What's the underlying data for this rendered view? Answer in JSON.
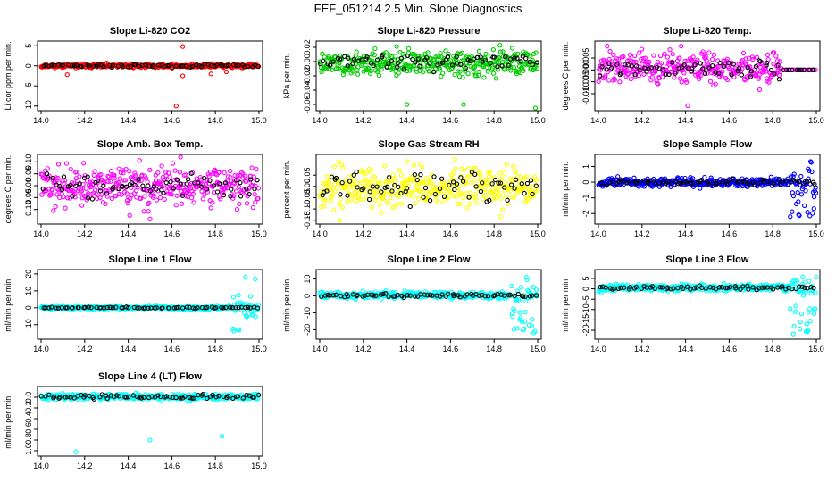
{
  "title": "FEF_051214  2.5 Min. Slope Diagnostics",
  "colors": {
    "red": "#ff0000",
    "green": "#00cc00",
    "magenta": "#ff00ff",
    "yellow": "#ffff00",
    "blue": "#0000ff",
    "cyan": "#00ffff",
    "black": "#000000"
  },
  "chart_data": [
    {
      "type": "scatter",
      "id": "co2",
      "title": "Slope Li-820 CO2",
      "ylabel": "Li cor ppm per min.",
      "color": "red",
      "xlim": [
        14.0,
        15.0
      ],
      "xticks": [
        "14.0",
        "14.2",
        "14.4",
        "14.6",
        "14.8",
        "15.0"
      ],
      "ylim": [
        -10.5,
        5.5
      ],
      "yticks": [
        -10,
        -5,
        0,
        5
      ],
      "ytick_labels": [
        "-10",
        "-5",
        "0",
        "5"
      ],
      "band": [
        -0.6,
        0.6
      ],
      "black_band": [
        -0.4,
        0.4
      ],
      "outliers": [
        [
          14.65,
          4.8
        ],
        [
          14.65,
          -2.5
        ],
        [
          14.12,
          -2.2
        ],
        [
          14.62,
          -10.0
        ],
        [
          14.78,
          -2.0
        ],
        [
          14.85,
          -1.5
        ]
      ],
      "seed": 11
    },
    {
      "type": "scatter",
      "id": "pressure",
      "title": "Slope Li-820 Pressure",
      "ylabel": "kPa per min.",
      "color": "green",
      "xlim": [
        14.0,
        15.0
      ],
      "xticks": [
        "14.0",
        "14.2",
        "14.4",
        "14.6",
        "14.8",
        "15.0"
      ],
      "ylim": [
        -0.065,
        0.025
      ],
      "yticks": [
        -0.06,
        -0.04,
        -0.02,
        0.0,
        0.02
      ],
      "ytick_labels": [
        "-0.06",
        "-0.04",
        "-0.02",
        "0.00",
        "0.02"
      ],
      "band": [
        -0.025,
        0.02
      ],
      "black_band": [
        -0.012,
        0.012
      ],
      "outliers": [
        [
          14.4,
          -0.06
        ],
        [
          14.66,
          -0.06
        ],
        [
          14.99,
          -0.065
        ]
      ],
      "seed": 23
    },
    {
      "type": "scatter",
      "id": "temp",
      "title": "Slope Li-820 Temp.",
      "ylabel": "degrees C per min.",
      "color": "magenta",
      "xlim": [
        14.0,
        15.0
      ],
      "xticks": [
        "14.0",
        "14.2",
        "14.4",
        "14.6",
        "14.8",
        "15.0"
      ],
      "ylim": [
        -0.016,
        0.011
      ],
      "yticks": [
        -0.01,
        -0.005,
        0.0,
        0.005
      ],
      "ytick_labels": [
        "-0.010",
        "-0.005",
        "0.000",
        "0.005"
      ],
      "band": [
        -0.007,
        0.009
      ],
      "black_band": [
        -0.004,
        0.005
      ],
      "flat_after": 14.84,
      "outliers": [
        [
          14.41,
          -0.015
        ],
        [
          14.38,
          0.01
        ],
        [
          14.04,
          0.01
        ]
      ],
      "seed": 37
    },
    {
      "type": "scatter",
      "id": "ambtemp",
      "title": "Slope Amb. Box Temp.",
      "ylabel": "degrees C per min.",
      "color": "magenta",
      "xlim": [
        14.0,
        15.0
      ],
      "xticks": [
        "14.0",
        "14.2",
        "14.4",
        "14.6",
        "14.8",
        "15.0"
      ],
      "ylim": [
        -0.15,
        0.12
      ],
      "yticks": [
        -0.1,
        -0.05,
        0.0,
        0.05,
        0.1
      ],
      "ytick_labels": [
        "-0.10",
        "-0.05",
        "0.00",
        "0.05",
        "0.10"
      ],
      "band": [
        -0.11,
        0.1
      ],
      "black_band": [
        -0.06,
        0.06
      ],
      "outliers": [
        [
          14.5,
          -0.14
        ],
        [
          14.64,
          0.12
        ],
        [
          14.08,
          0.09
        ]
      ],
      "seed": 41
    },
    {
      "type": "scatter",
      "id": "rh",
      "title": "Slope Gas Stream RH",
      "ylabel": "percent per min.",
      "color": "yellow",
      "xlim": [
        14.0,
        15.0
      ],
      "xticks": [
        "14.0",
        "14.2",
        "14.4",
        "14.6",
        "14.8",
        "15.0"
      ],
      "ylim": [
        -0.155,
        0.13
      ],
      "yticks": [
        -0.15,
        -0.1,
        -0.05,
        0.0,
        0.05
      ],
      "ytick_labels": [
        "-0.15",
        "-0.10",
        "-0.05",
        "0.00",
        "0.05"
      ],
      "band": [
        -0.12,
        0.11
      ],
      "black_band": [
        -0.09,
        0.09
      ],
      "outliers": [
        [
          14.09,
          -0.15
        ],
        [
          14.4,
          0.11
        ],
        [
          14.62,
          0.12
        ]
      ],
      "seed": 53
    },
    {
      "type": "scatter",
      "id": "sampleflow",
      "title": "Slope Sample Flow",
      "ylabel": "ml/min per min.",
      "color": "blue",
      "xlim": [
        14.0,
        15.0
      ],
      "xticks": [
        "14.0",
        "14.2",
        "14.4",
        "14.6",
        "14.8",
        "15.0"
      ],
      "ylim": [
        -2.5,
        1.6
      ],
      "yticks": [
        -2,
        -1,
        0,
        1
      ],
      "ytick_labels": [
        "-2",
        "-1",
        "0",
        "1"
      ],
      "band": [
        -0.35,
        0.35
      ],
      "black_band": [
        -0.25,
        0.25
      ],
      "spread_after": [
        14.88,
        -2.4,
        1.4
      ],
      "outliers": [],
      "seed": 67
    },
    {
      "type": "scatter",
      "id": "line1",
      "title": "Slope Line 1 Flow",
      "ylabel": "ml/min per min.",
      "color": "cyan",
      "xlim": [
        14.0,
        15.0
      ],
      "xticks": [
        "14.0",
        "14.2",
        "14.4",
        "14.6",
        "14.8",
        "15.0"
      ],
      "ylim": [
        -17,
        21
      ],
      "yticks": [
        -10,
        0,
        10,
        20
      ],
      "ytick_labels": [
        "-10",
        "0",
        "10",
        "20"
      ],
      "band": [
        -1.2,
        1.2
      ],
      "black_band": [
        -0.5,
        0.5
      ],
      "spread_after": [
        14.88,
        -15,
        20
      ],
      "outliers": [],
      "seed": 71
    },
    {
      "type": "scatter",
      "id": "line2",
      "title": "Slope Line 2 Flow",
      "ylabel": "ml/min per min.",
      "color": "cyan",
      "xlim": [
        14.0,
        15.0
      ],
      "xticks": [
        "14.0",
        "14.2",
        "14.4",
        "14.6",
        "14.8",
        "15.0"
      ],
      "ylim": [
        -24,
        14
      ],
      "yticks": [
        -20,
        -10,
        0,
        10
      ],
      "ytick_labels": [
        "-20",
        "-10",
        "0",
        "10"
      ],
      "band": [
        -2,
        3
      ],
      "black_band": [
        -1,
        1.5
      ],
      "spread_after": [
        14.88,
        -22,
        12
      ],
      "outliers": [],
      "seed": 83
    },
    {
      "type": "scatter",
      "id": "line3",
      "title": "Slope Line 3 Flow",
      "ylabel": "ml/min per min.",
      "color": "cyan",
      "xlim": [
        14.0,
        15.0
      ],
      "xticks": [
        "14.0",
        "14.2",
        "14.4",
        "14.6",
        "14.8",
        "15.0"
      ],
      "ylim": [
        -23,
        8
      ],
      "yticks": [
        -20,
        -15,
        -10,
        -5,
        0,
        5
      ],
      "ytick_labels": [
        "-20",
        "-15",
        "-10",
        "-5",
        "0",
        "5"
      ],
      "band": [
        -1.5,
        2.5
      ],
      "black_band": [
        -0.5,
        1.5
      ],
      "spread_after": [
        14.88,
        -22,
        7
      ],
      "outliers": [],
      "seed": 97
    },
    {
      "type": "scatter",
      "id": "line4",
      "title": "Slope Line 4 (LT) Flow",
      "ylabel": "ml/min per min.",
      "color": "cyan",
      "xlim": [
        14.0,
        15.0
      ],
      "xticks": [
        "14.0",
        "14.2",
        "14.4",
        "14.6",
        "14.8",
        "15.0"
      ],
      "ylim": [
        -1.05,
        0.15
      ],
      "yticks": [
        -1.0,
        -0.8,
        -0.6,
        -0.4,
        -0.2,
        0.0
      ],
      "ytick_labels": [
        "-1.0",
        "-0.8",
        "-0.6",
        "-0.4",
        "-0.2",
        "0.0"
      ],
      "band": [
        -0.06,
        0.08
      ],
      "black_band": [
        -0.04,
        0.06
      ],
      "outliers": [
        [
          14.16,
          -1.02
        ],
        [
          14.5,
          -0.8
        ],
        [
          14.83,
          -0.73
        ]
      ],
      "seed": 101
    }
  ]
}
